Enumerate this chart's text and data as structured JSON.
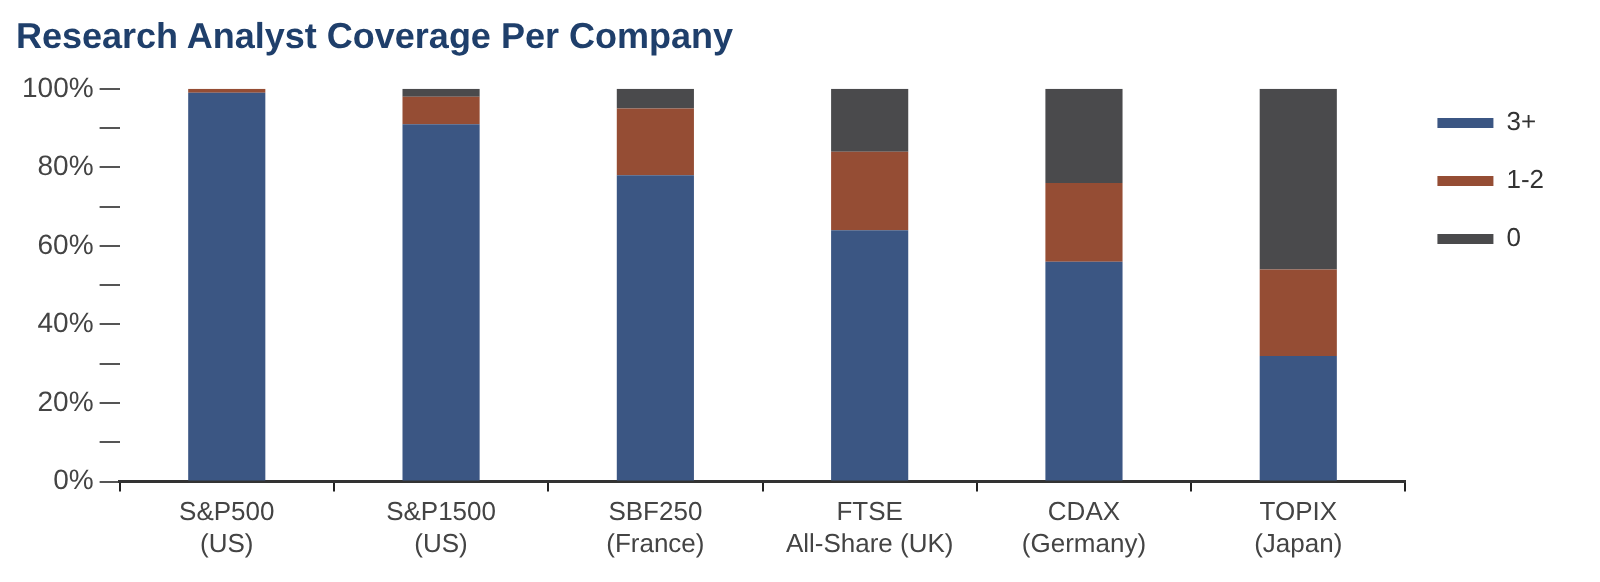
{
  "chart_data": {
    "type": "bar",
    "title": "Research Analyst Coverage Per Company",
    "stacked": true,
    "categories": [
      "S&P500\n(US)",
      "S&P1500\n(US)",
      "SBF250\n(France)",
      "FTSE\nAll-Share (UK)",
      "CDAX\n(Germany)",
      "TOPIX\n(Japan)"
    ],
    "series": [
      {
        "name": "3+",
        "color": "#3b5683",
        "values": [
          99,
          91,
          78,
          64,
          56,
          32
        ]
      },
      {
        "name": "1-2",
        "color": "#954d34",
        "values": [
          1,
          7,
          17,
          20,
          20,
          22
        ]
      },
      {
        "name": "0",
        "color": "#4a4a4c",
        "values": [
          0,
          2,
          5,
          16,
          24,
          46
        ]
      }
    ],
    "ylim": [
      0,
      100
    ],
    "yticks": [
      {
        "value": 0,
        "label": "0%"
      },
      {
        "value": 10,
        "label": null
      },
      {
        "value": 20,
        "label": "20%"
      },
      {
        "value": 30,
        "label": null
      },
      {
        "value": 40,
        "label": "40%"
      },
      {
        "value": 50,
        "label": null
      },
      {
        "value": 60,
        "label": "60%"
      },
      {
        "value": 70,
        "label": null
      },
      {
        "value": 80,
        "label": "80%"
      },
      {
        "value": 90,
        "label": null
      },
      {
        "value": 100,
        "label": "100%"
      }
    ],
    "grid": false,
    "legend": "right"
  }
}
